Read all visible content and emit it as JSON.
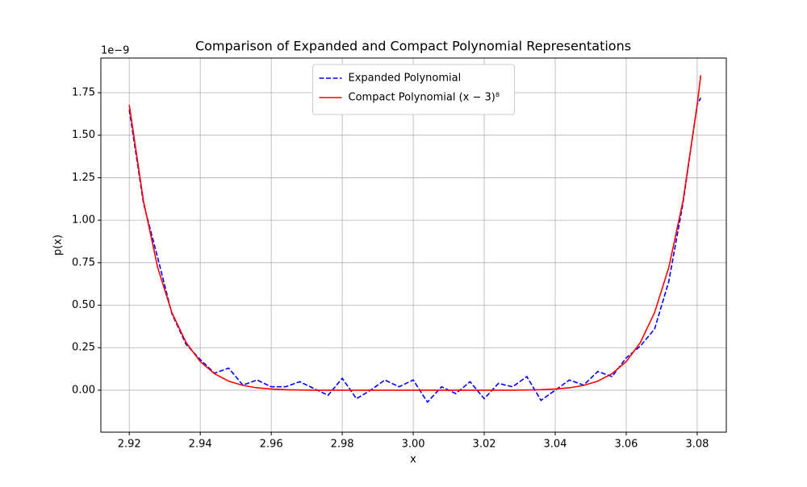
{
  "chart_data": {
    "type": "line",
    "title": "Comparison of Expanded and Compact Polynomial Representations",
    "x_label": "x",
    "y_label": "p(x)",
    "y_offset_label": "1e−9",
    "x": [
      2.92,
      2.924,
      2.928,
      2.932,
      2.936,
      2.94,
      2.944,
      2.948,
      2.952,
      2.956,
      2.96,
      2.964,
      2.968,
      2.972,
      2.976,
      2.98,
      2.984,
      2.988,
      2.992,
      2.996,
      3.0,
      3.004,
      3.008,
      3.012,
      3.016,
      3.02,
      3.024,
      3.028,
      3.032,
      3.036,
      3.04,
      3.044,
      3.048,
      3.052,
      3.056,
      3.06,
      3.064,
      3.068,
      3.072,
      3.076,
      3.08,
      3.081
    ],
    "series": [
      {
        "name": "Expanded Polynomial",
        "color": "#0000ff",
        "linestyle": "dashed",
        "values": [
          1.65,
          1.1,
          0.78,
          0.45,
          0.27,
          0.18,
          0.1,
          0.13,
          0.03,
          0.06,
          0.02,
          0.02,
          0.05,
          0.01,
          -0.03,
          0.07,
          -0.05,
          0.0,
          0.06,
          0.02,
          0.06,
          -0.07,
          0.02,
          -0.02,
          0.05,
          -0.05,
          0.04,
          0.02,
          0.08,
          -0.06,
          0.0,
          0.06,
          0.03,
          0.11,
          0.08,
          0.19,
          0.26,
          0.36,
          0.64,
          1.1,
          1.68,
          1.72
        ]
      },
      {
        "name": "Compact Polynomial (x − 3)⁸",
        "color": "#ff0000",
        "linestyle": "solid",
        "values": [
          1.678,
          1.113,
          0.722,
          0.457,
          0.281,
          0.168,
          0.097,
          0.053,
          0.028,
          0.014,
          0.007,
          0.003,
          0.001,
          0,
          0,
          0,
          0,
          0,
          0,
          0,
          0,
          0,
          0,
          0,
          0,
          0,
          0,
          0,
          0.001,
          0.003,
          0.007,
          0.014,
          0.028,
          0.053,
          0.097,
          0.168,
          0.281,
          0.457,
          0.722,
          1.113,
          1.678,
          1.853
        ]
      }
    ],
    "xlim": [
      2.912,
      3.0882
    ],
    "ylim": [
      -0.247,
      1.954
    ],
    "xticks": [
      2.92,
      2.94,
      2.96,
      2.98,
      {
        "value": 3,
        "label": "3.00"
      },
      3.02,
      3.04,
      3.06,
      3.08
    ],
    "yticks": [
      {
        "value": 0,
        "label": "0.00"
      },
      0.25,
      {
        "value": 0.5,
        "label": "0.50"
      },
      0.75,
      {
        "value": 1,
        "label": "1.00"
      },
      1.25,
      {
        "value": 1.5,
        "label": "1.50"
      },
      1.75
    ],
    "grid": true,
    "legend": "upper center"
  }
}
